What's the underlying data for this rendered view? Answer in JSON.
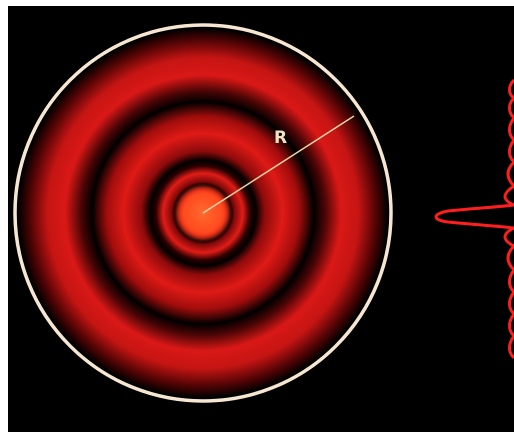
{
  "diagram": {
    "radius_label": "R",
    "colors": {
      "background": "#000000",
      "ring": "#e01b17",
      "core": "#ff4a1f",
      "boundary": "#f7e7d2",
      "radius_line": "#e6d6a8",
      "profile": "#ff1e1e"
    }
  }
}
